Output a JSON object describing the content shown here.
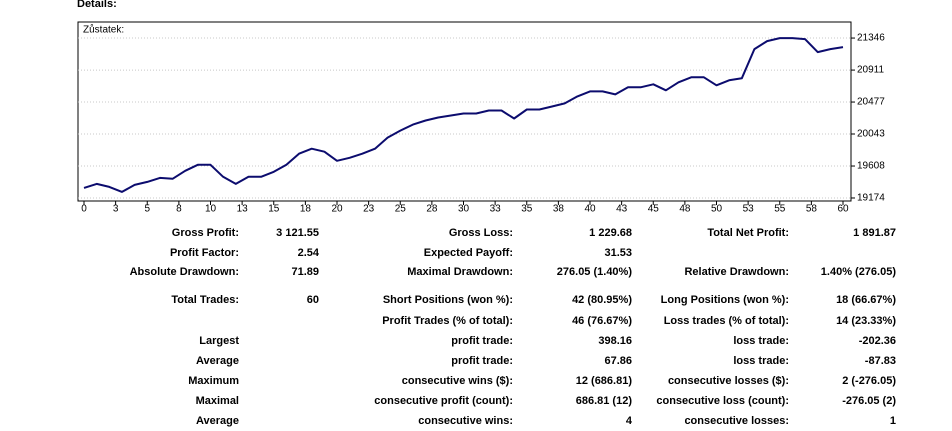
{
  "heading": "Details:",
  "chart_data": {
    "type": "line",
    "x": [
      0,
      1,
      2,
      3,
      4,
      5,
      6,
      7,
      8,
      9,
      10,
      11,
      12,
      13,
      14,
      15,
      16,
      17,
      18,
      19,
      20,
      21,
      22,
      23,
      24,
      25,
      26,
      27,
      28,
      29,
      30,
      31,
      32,
      33,
      34,
      35,
      36,
      37,
      38,
      39,
      40,
      41,
      42,
      43,
      44,
      45,
      46,
      47,
      48,
      49,
      50,
      51,
      52,
      53,
      54,
      55,
      56,
      57,
      58,
      59,
      60
    ],
    "series": [
      {
        "name": "Zůstatek:",
        "color": "#0c0c6e",
        "values": [
          19311,
          19365,
          19324,
          19256,
          19352,
          19393,
          19447,
          19434,
          19543,
          19625,
          19625,
          19461,
          19365,
          19461,
          19461,
          19529,
          19625,
          19775,
          19843,
          19802,
          19679,
          19720,
          19775,
          19843,
          19994,
          20089,
          20171,
          20226,
          20267,
          20294,
          20321,
          20321,
          20362,
          20362,
          20253,
          20376,
          20376,
          20417,
          20458,
          20554,
          20622,
          20622,
          20581,
          20677,
          20677,
          20718,
          20636,
          20745,
          20813,
          20813,
          20704,
          20772,
          20800,
          21196,
          21305,
          21346,
          21346,
          21332,
          21155,
          21196,
          21223
        ]
      }
    ],
    "xlim": [
      0,
      60
    ],
    "xticks": [
      0,
      {
        "value": 2.5,
        "label": "3"
      },
      5,
      {
        "value": 7.5,
        "label": "8"
      },
      10,
      {
        "value": 12.5,
        "label": "13"
      },
      15,
      {
        "value": 17.5,
        "label": "18"
      },
      20,
      {
        "value": 22.5,
        "label": "23"
      },
      25,
      {
        "value": 27.5,
        "label": "28"
      },
      30,
      {
        "value": 32.5,
        "label": "33"
      },
      35,
      {
        "value": 37.5,
        "label": "38"
      },
      40,
      {
        "value": 42.5,
        "label": "43"
      },
      45,
      {
        "value": 47.5,
        "label": "48"
      },
      50,
      {
        "value": 52.5,
        "label": "53"
      },
      55,
      {
        "value": 57.5,
        "label": "58"
      },
      60
    ],
    "ylim": [
      19133,
      21564
    ],
    "yticks": [
      19174,
      19608,
      20043,
      20477,
      20911,
      21346
    ],
    "grid": true
  },
  "table": {
    "rows": [
      [
        "Gross Profit:",
        "3 121.55",
        "Gross Loss:",
        "1 229.68",
        "Total Net Profit:",
        "1 891.87"
      ],
      [
        "Profit Factor:",
        "2.54",
        "Expected Payoff:",
        "31.53",
        null,
        null
      ],
      [
        "Absolute Drawdown:",
        "71.89",
        "Maximal Drawdown:",
        "276.05 (1.40%)",
        "Relative Drawdown:",
        "1.40% (276.05)"
      ],
      [
        "Total Trades:",
        "60",
        "Short Positions (won %):",
        "42 (80.95%)",
        "Long Positions (won %):",
        "18 (66.67%)"
      ],
      [
        null,
        null,
        "Profit Trades (% of total):",
        "46 (76.67%)",
        "Loss trades (% of total):",
        "14 (23.33%)"
      ],
      [
        "Largest",
        null,
        "profit trade:",
        "398.16",
        "loss trade:",
        "-202.36"
      ],
      [
        "Average",
        null,
        "profit trade:",
        "67.86",
        "loss trade:",
        "-87.83"
      ],
      [
        "Maximum",
        null,
        "consecutive wins ($):",
        "12 (686.81)",
        "consecutive losses ($):",
        "2 (-276.05)"
      ],
      [
        "Maximal",
        null,
        "consecutive profit (count):",
        "686.81 (12)",
        "consecutive loss (count):",
        "-276.05 (2)"
      ],
      [
        "Average",
        null,
        "consecutive wins:",
        "4",
        "consecutive losses:",
        "1"
      ]
    ]
  }
}
